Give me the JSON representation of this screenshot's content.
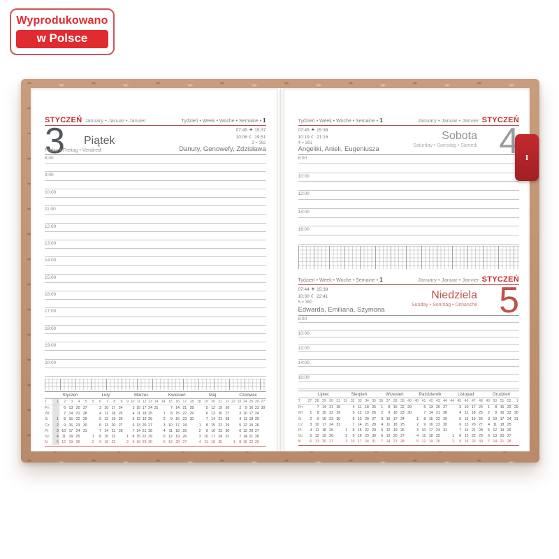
{
  "badge": {
    "line1": "Wyprodukowano",
    "line2": "w Polsce"
  },
  "tab": {
    "label": "I"
  },
  "colors": {
    "accent_red": "#c12e31",
    "badge_red": "#e02b30",
    "sunday_red": "#c05a50",
    "cork": "#c2926f"
  },
  "common": {
    "month_pl": "STYCZEŃ",
    "month_langs": "January • Januar • Janvier",
    "week_label": "Tydzień • Week • Woche • Semaine •",
    "week_number": "1"
  },
  "days": [
    {
      "number": "3",
      "name_pl": "Piątek",
      "name_langs": "Friday • Freitag • Vendredi",
      "sunrise": "07:45",
      "sunset": "15:37",
      "moonrise": "10:06",
      "moonset": "19:51",
      "day_of_year": "3 = 362",
      "name_days": "Danuty, Genowefy, Zdzisława",
      "lines": [
        "8:00",
        "",
        "9:00",
        "",
        "10:00",
        "",
        "11:00",
        "",
        "12:00",
        "",
        "13:00",
        "",
        "14:00",
        "",
        "15:00",
        "",
        "16:00",
        "",
        "17:00",
        "",
        "18:00",
        "",
        "19:00",
        "",
        "20:00",
        ""
      ]
    },
    {
      "number": "4",
      "name_pl": "Sobota",
      "name_langs": "Saturday • Samstag • Samedi",
      "sunrise": "07:45",
      "sunset": "15:38",
      "moonrise": "10:19",
      "moonset": "21:16",
      "day_of_year": "4 = 361",
      "name_days": "Angeliki, Anieli, Eugeniusza",
      "lines": [
        "8:00",
        "",
        "10:00",
        "",
        "12:00",
        "",
        "14:00",
        "",
        "16:00",
        ""
      ]
    },
    {
      "number": "5",
      "name_pl": "Niedziela",
      "name_langs": "Sunday • Sonntag • Dimanche",
      "sunrise": "07:44",
      "sunset": "15:39",
      "moonrise": "10:30",
      "moonset": "22:41",
      "day_of_year": "5 = 360",
      "name_days": "Edwarda, Emiliana, Szymona",
      "lines": [
        "8:00",
        "",
        "10:00",
        "",
        "12:00",
        "",
        "14:00",
        "",
        "16:00",
        ""
      ]
    }
  ],
  "mini_calendars": {
    "week_col_header": "T",
    "weekday_labels": [
      "Pn",
      "Wt",
      "Śr",
      "Cz",
      "Pt",
      "So",
      "N"
    ],
    "left_months": [
      {
        "name": "Styczeń",
        "hl": 0,
        "weeks": [
          "1",
          "2",
          "3",
          "4",
          "5"
        ],
        "rows": [
          [
            "",
            "6",
            "13",
            "20",
            "27"
          ],
          [
            "",
            "7",
            "14",
            "21",
            "28"
          ],
          [
            "1",
            "8",
            "15",
            "22",
            "29"
          ],
          [
            "2",
            "9",
            "16",
            "23",
            "30"
          ],
          [
            "3",
            "10",
            "17",
            "24",
            "31"
          ],
          [
            "4",
            "11",
            "18",
            "25",
            ""
          ],
          [
            "5",
            "12",
            "19",
            "26",
            ""
          ]
        ]
      },
      {
        "name": "Luty",
        "hl": -1,
        "weeks": [
          "5",
          "6",
          "7",
          "8",
          "9"
        ],
        "rows": [
          [
            "",
            "3",
            "10",
            "17",
            "24"
          ],
          [
            "",
            "4",
            "11",
            "18",
            "25"
          ],
          [
            "",
            "5",
            "12",
            "19",
            "26"
          ],
          [
            "",
            "6",
            "13",
            "20",
            "27"
          ],
          [
            "",
            "7",
            "14",
            "21",
            "28"
          ],
          [
            "1",
            "8",
            "15",
            "22",
            ""
          ],
          [
            "2",
            "9",
            "16",
            "23",
            ""
          ]
        ]
      },
      {
        "name": "Marzec",
        "hl": -1,
        "weeks": [
          "9",
          "10",
          "11",
          "12",
          "13",
          "14"
        ],
        "rows": [
          [
            "",
            "3",
            "10",
            "17",
            "24",
            "31"
          ],
          [
            "",
            "4",
            "11",
            "18",
            "25",
            ""
          ],
          [
            "",
            "5",
            "12",
            "19",
            "26",
            ""
          ],
          [
            "",
            "6",
            "13",
            "20",
            "27",
            ""
          ],
          [
            "",
            "7",
            "14",
            "21",
            "28",
            ""
          ],
          [
            "1",
            "8",
            "15",
            "22",
            "29",
            ""
          ],
          [
            "2",
            "9",
            "16",
            "23",
            "30",
            ""
          ]
        ]
      },
      {
        "name": "Kwiecień",
        "hl": -1,
        "weeks": [
          "14",
          "15",
          "16",
          "17",
          "18"
        ],
        "rows": [
          [
            "",
            "7",
            "14",
            "21",
            "28"
          ],
          [
            "1",
            "8",
            "15",
            "22",
            "29"
          ],
          [
            "2",
            "9",
            "16",
            "23",
            "30"
          ],
          [
            "3",
            "10",
            "17",
            "24",
            ""
          ],
          [
            "4",
            "11",
            "18",
            "25",
            ""
          ],
          [
            "5",
            "12",
            "19",
            "26",
            ""
          ],
          [
            "6",
            "13",
            "20",
            "27",
            ""
          ]
        ]
      },
      {
        "name": "Maj",
        "hl": -1,
        "weeks": [
          "18",
          "19",
          "20",
          "21",
          "22"
        ],
        "rows": [
          [
            "",
            "5",
            "12",
            "19",
            "26"
          ],
          [
            "",
            "6",
            "13",
            "20",
            "27"
          ],
          [
            "",
            "7",
            "14",
            "21",
            "28"
          ],
          [
            "1",
            "8",
            "15",
            "22",
            "29"
          ],
          [
            "2",
            "9",
            "16",
            "23",
            "30"
          ],
          [
            "3",
            "10",
            "17",
            "24",
            "31"
          ],
          [
            "4",
            "11",
            "18",
            "25",
            ""
          ]
        ]
      },
      {
        "name": "Czerwiec",
        "hl": -1,
        "weeks": [
          "22",
          "23",
          "24",
          "25",
          "26",
          "27"
        ],
        "rows": [
          [
            "",
            "2",
            "9",
            "16",
            "23",
            "30"
          ],
          [
            "",
            "3",
            "10",
            "17",
            "24",
            ""
          ],
          [
            "",
            "4",
            "11",
            "18",
            "25",
            ""
          ],
          [
            "",
            "5",
            "12",
            "19",
            "26",
            ""
          ],
          [
            "",
            "6",
            "13",
            "20",
            "27",
            ""
          ],
          [
            "",
            "7",
            "14",
            "21",
            "28",
            ""
          ],
          [
            "1",
            "8",
            "15",
            "22",
            "29",
            ""
          ]
        ]
      }
    ],
    "right_months": [
      {
        "name": "Lipiec",
        "hl": -1,
        "weeks": [
          "27",
          "28",
          "29",
          "30",
          "31"
        ],
        "rows": [
          [
            "",
            "7",
            "14",
            "21",
            "28"
          ],
          [
            "1",
            "8",
            "15",
            "22",
            "29"
          ],
          [
            "2",
            "9",
            "16",
            "23",
            "30"
          ],
          [
            "3",
            "10",
            "17",
            "24",
            "31"
          ],
          [
            "4",
            "11",
            "18",
            "25",
            ""
          ],
          [
            "5",
            "12",
            "19",
            "26",
            ""
          ],
          [
            "6",
            "13",
            "20",
            "27",
            ""
          ]
        ]
      },
      {
        "name": "Sierpień",
        "hl": -1,
        "weeks": [
          "31",
          "32",
          "33",
          "34",
          "35"
        ],
        "rows": [
          [
            "",
            "4",
            "11",
            "18",
            "25"
          ],
          [
            "",
            "5",
            "12",
            "19",
            "26"
          ],
          [
            "",
            "6",
            "13",
            "20",
            "27"
          ],
          [
            "",
            "7",
            "14",
            "21",
            "28"
          ],
          [
            "1",
            "8",
            "15",
            "22",
            "29"
          ],
          [
            "2",
            "9",
            "16",
            "23",
            "30"
          ],
          [
            "3",
            "10",
            "17",
            "24",
            "31"
          ]
        ]
      },
      {
        "name": "Wrzesień",
        "hl": -1,
        "weeks": [
          "36",
          "37",
          "38",
          "39",
          "40"
        ],
        "rows": [
          [
            "1",
            "8",
            "15",
            "22",
            "29"
          ],
          [
            "2",
            "9",
            "16",
            "23",
            "30"
          ],
          [
            "3",
            "10",
            "17",
            "24",
            ""
          ],
          [
            "4",
            "11",
            "18",
            "25",
            ""
          ],
          [
            "5",
            "12",
            "19",
            "26",
            ""
          ],
          [
            "6",
            "13",
            "20",
            "27",
            ""
          ],
          [
            "7",
            "14",
            "21",
            "28",
            ""
          ]
        ]
      },
      {
        "name": "Październik",
        "hl": -1,
        "weeks": [
          "40",
          "41",
          "42",
          "43",
          "44"
        ],
        "rows": [
          [
            "",
            "6",
            "13",
            "20",
            "27"
          ],
          [
            "",
            "7",
            "14",
            "21",
            "28"
          ],
          [
            "1",
            "8",
            "15",
            "22",
            "29"
          ],
          [
            "2",
            "9",
            "16",
            "23",
            "30"
          ],
          [
            "3",
            "10",
            "17",
            "24",
            "31"
          ],
          [
            "4",
            "11",
            "18",
            "25",
            ""
          ],
          [
            "5",
            "12",
            "19",
            "26",
            ""
          ]
        ]
      },
      {
        "name": "Listopad",
        "hl": -1,
        "weeks": [
          "44",
          "45",
          "46",
          "47",
          "48"
        ],
        "rows": [
          [
            "",
            "3",
            "10",
            "17",
            "24"
          ],
          [
            "",
            "4",
            "11",
            "18",
            "25"
          ],
          [
            "",
            "5",
            "12",
            "19",
            "26"
          ],
          [
            "",
            "6",
            "13",
            "20",
            "27"
          ],
          [
            "",
            "7",
            "14",
            "21",
            "28"
          ],
          [
            "1",
            "8",
            "15",
            "22",
            "29"
          ],
          [
            "2",
            "9",
            "16",
            "23",
            "30"
          ]
        ]
      },
      {
        "name": "Grudzień",
        "hl": -1,
        "weeks": [
          "49",
          "50",
          "51",
          "52",
          "1"
        ],
        "rows": [
          [
            "1",
            "8",
            "15",
            "22",
            "29"
          ],
          [
            "2",
            "9",
            "16",
            "23",
            "30"
          ],
          [
            "3",
            "10",
            "17",
            "24",
            "31"
          ],
          [
            "4",
            "11",
            "18",
            "25",
            ""
          ],
          [
            "5",
            "12",
            "19",
            "26",
            ""
          ],
          [
            "6",
            "13",
            "20",
            "27",
            ""
          ],
          [
            "7",
            "14",
            "21",
            "28",
            ""
          ]
        ]
      }
    ]
  }
}
